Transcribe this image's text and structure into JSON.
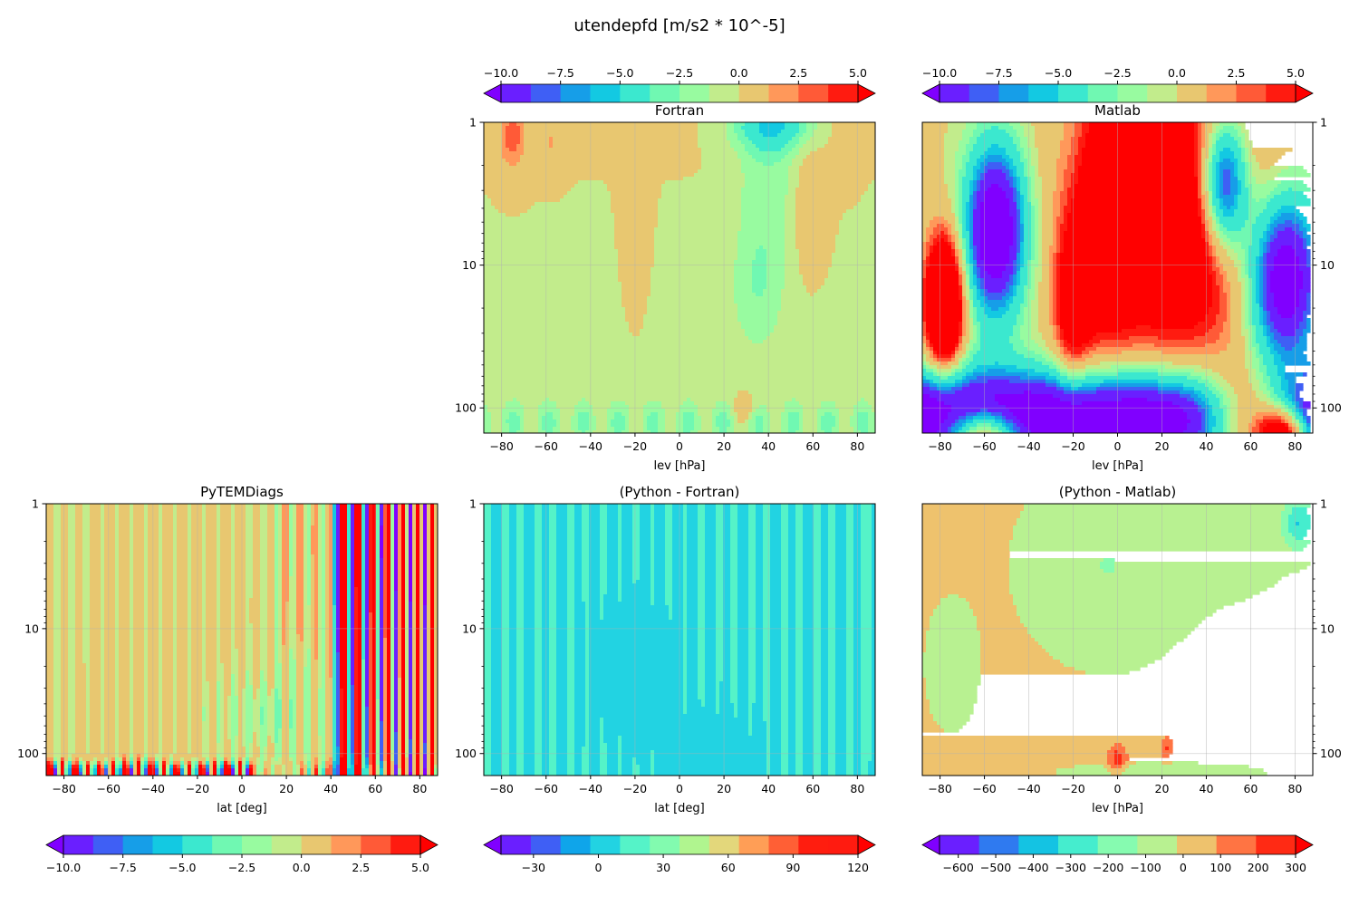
{
  "figure": {
    "suptitle": "utendepfd [m/s2 * 10^-5]"
  },
  "chart_data": [
    {
      "type": "heatmap",
      "panel": "fortran",
      "title": "Fortran",
      "xlabel": "lev [hPa]",
      "ylabel": "",
      "xlim": [
        -88,
        88
      ],
      "ylim": [
        1,
        150
      ],
      "y_scale": "log",
      "y_inverted": true,
      "x_ticks": [
        -80,
        -60,
        -40,
        -20,
        0,
        20,
        40,
        60,
        80
      ],
      "y_ticks": [
        1,
        10,
        100
      ],
      "y_tick_side": "left",
      "grid": true,
      "pattern": "fortran",
      "colorbar": {
        "placement": "top",
        "levels": [
          -10,
          -9,
          -8,
          -7,
          -6,
          -5,
          -4,
          -3,
          -2,
          -1,
          0,
          1,
          2,
          3,
          4,
          5
        ],
        "ticks": [
          -10,
          -7.5,
          -5,
          -2.5,
          0,
          2.5,
          5
        ],
        "tick_labels": [
          "−10.0",
          "−7.5",
          "−5.0",
          "−2.5",
          "0.0",
          "2.5",
          "5.0"
        ],
        "colors": [
          "#6a1fff",
          "#3f5ff5",
          "#169ee8",
          "#13c9e2",
          "#3be8cf",
          "#70f8b2",
          "#98fba0",
          "#c2ec8c",
          "#e8c770",
          "#ff985a",
          "#ff5a37",
          "#ff1b10"
        ],
        "under_color": "#8000ff",
        "over_color": "#ff0000"
      }
    },
    {
      "type": "heatmap",
      "panel": "matlab",
      "title": "Matlab",
      "xlabel": "lev [hPa]",
      "ylabel": "",
      "xlim": [
        -88,
        88
      ],
      "ylim": [
        1,
        150
      ],
      "y_scale": "log",
      "y_inverted": true,
      "x_ticks": [
        -80,
        -60,
        -40,
        -20,
        0,
        20,
        40,
        60,
        80
      ],
      "y_ticks": [
        1,
        10,
        100
      ],
      "y_tick_side": "right",
      "grid": true,
      "pattern": "matlab",
      "colorbar": {
        "placement": "top",
        "levels": [
          -10,
          -9,
          -8,
          -7,
          -6,
          -5,
          -4,
          -3,
          -2,
          -1,
          0,
          1,
          2,
          3,
          4,
          5
        ],
        "ticks": [
          -10,
          -7.5,
          -5,
          -2.5,
          0,
          2.5,
          5
        ],
        "tick_labels": [
          "−10.0",
          "−7.5",
          "−5.0",
          "−2.5",
          "0.0",
          "2.5",
          "5.0"
        ],
        "colors": [
          "#6a1fff",
          "#3f5ff5",
          "#169ee8",
          "#13c9e2",
          "#3be8cf",
          "#70f8b2",
          "#98fba0",
          "#c2ec8c",
          "#e8c770",
          "#ff985a",
          "#ff5a37",
          "#ff1b10"
        ],
        "under_color": "#8000ff",
        "over_color": "#ff0000"
      }
    },
    {
      "type": "heatmap",
      "panel": "pytemdiags",
      "title": "PyTEMDiags",
      "xlabel": "lat [deg]",
      "ylabel": "",
      "xlim": [
        -88,
        88
      ],
      "ylim": [
        1,
        150
      ],
      "y_scale": "log",
      "y_inverted": true,
      "x_ticks": [
        -80,
        -60,
        -40,
        -20,
        0,
        20,
        40,
        60,
        80
      ],
      "y_ticks": [
        1,
        10,
        100
      ],
      "y_tick_side": "left",
      "grid": true,
      "pattern": "pytemdiags",
      "colorbar": {
        "placement": "bottom",
        "levels": [
          -10,
          -9,
          -8,
          -7,
          -6,
          -5,
          -4,
          -3,
          -2,
          -1,
          0,
          1,
          2,
          3,
          4,
          5
        ],
        "ticks": [
          -10,
          -7.5,
          -5,
          -2.5,
          0,
          2.5,
          5
        ],
        "tick_labels": [
          "−10.0",
          "−7.5",
          "−5.0",
          "−2.5",
          "0.0",
          "2.5",
          "5.0"
        ],
        "colors": [
          "#6a1fff",
          "#3f5ff5",
          "#169ee8",
          "#13c9e2",
          "#3be8cf",
          "#70f8b2",
          "#98fba0",
          "#c2ec8c",
          "#e8c770",
          "#ff985a",
          "#ff5a37",
          "#ff1b10"
        ],
        "under_color": "#8000ff",
        "over_color": "#ff0000"
      }
    },
    {
      "type": "heatmap",
      "panel": "python-fortran",
      "title": "(Python - Fortran)",
      "xlabel": "lat [deg]",
      "ylabel": "",
      "xlim": [
        -88,
        88
      ],
      "ylim": [
        1,
        150
      ],
      "y_scale": "log",
      "y_inverted": true,
      "x_ticks": [
        -80,
        -60,
        -40,
        -20,
        0,
        20,
        40,
        60,
        80
      ],
      "y_ticks": [
        1,
        10,
        100
      ],
      "y_tick_side": "left",
      "grid": true,
      "pattern": "pyfortran",
      "colorbar": {
        "placement": "bottom",
        "levels": [
          -45,
          -37.5,
          -30,
          -15,
          0,
          15,
          30,
          45,
          60,
          75,
          90,
          105,
          120
        ],
        "ticks": [
          -30,
          0,
          30,
          60,
          90,
          120
        ],
        "tick_labels": [
          "−30",
          "0",
          "30",
          "60",
          "90",
          "120"
        ],
        "colors": [
          "#6a1fff",
          "#3f5ff5",
          "#0fa5ea",
          "#22d3e2",
          "#55f3c8",
          "#82fbaf",
          "#b0f58f",
          "#e3d77b",
          "#ff9e56",
          "#ff5f35",
          "#ff1d0f",
          "#ff1b10"
        ],
        "under_color": "#8000ff",
        "over_color": "#ff0000"
      }
    },
    {
      "type": "heatmap",
      "panel": "python-matlab",
      "title": "(Python - Matlab)",
      "xlabel": "lev [hPa]",
      "ylabel": "",
      "xlim": [
        -88,
        88
      ],
      "ylim": [
        1,
        150
      ],
      "y_scale": "log",
      "y_inverted": true,
      "x_ticks": [
        -80,
        -60,
        -40,
        -20,
        0,
        20,
        40,
        60,
        80
      ],
      "y_ticks": [
        1,
        10,
        100
      ],
      "y_tick_side": "right",
      "grid": true,
      "pattern": "pymatlab",
      "colorbar": {
        "placement": "bottom",
        "levels": [
          -650,
          -600,
          -500,
          -400,
          -300,
          -200,
          -100,
          0,
          100,
          200,
          300
        ],
        "ticks": [
          -600,
          -500,
          -400,
          -300,
          -200,
          -100,
          0,
          100,
          200,
          300
        ],
        "tick_labels": [
          "−600",
          "−500",
          "−400",
          "−300",
          "−200",
          "−100",
          "0",
          "100",
          "200",
          "300"
        ],
        "colors": [
          "#6a1fff",
          "#2f7af0",
          "#14c3e3",
          "#45edce",
          "#86fbb0",
          "#b8f191",
          "#eec26d",
          "#ff7443",
          "#ff2a14"
        ],
        "under_color": "#8000ff",
        "over_color": "#ff0000"
      }
    }
  ]
}
